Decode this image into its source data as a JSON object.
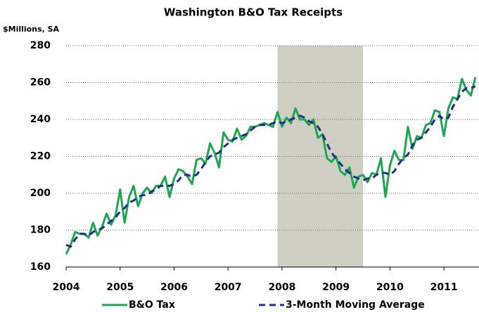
{
  "chart_data": {
    "type": "line",
    "title": "Washington B&O Tax Receipts",
    "y_label": "$Millions, SA",
    "x": [
      2004,
      2004.083,
      2004.167,
      2004.25,
      2004.333,
      2004.417,
      2004.5,
      2004.583,
      2004.667,
      2004.75,
      2004.833,
      2004.917,
      2005,
      2005.083,
      2005.167,
      2005.25,
      2005.333,
      2005.417,
      2005.5,
      2005.583,
      2005.667,
      2005.75,
      2005.833,
      2005.917,
      2006,
      2006.083,
      2006.167,
      2006.25,
      2006.333,
      2006.417,
      2006.5,
      2006.583,
      2006.667,
      2006.75,
      2006.833,
      2006.917,
      2007,
      2007.083,
      2007.167,
      2007.25,
      2007.333,
      2007.417,
      2007.5,
      2007.583,
      2007.667,
      2007.75,
      2007.833,
      2007.917,
      2008,
      2008.083,
      2008.167,
      2008.25,
      2008.333,
      2008.417,
      2008.5,
      2008.583,
      2008.667,
      2008.75,
      2008.833,
      2008.917,
      2009,
      2009.083,
      2009.167,
      2009.25,
      2009.333,
      2009.417,
      2009.5,
      2009.583,
      2009.667,
      2009.75,
      2009.833,
      2009.917,
      2010,
      2010.083,
      2010.167,
      2010.25,
      2010.333,
      2010.417,
      2010.5,
      2010.583,
      2010.667,
      2010.75,
      2010.833,
      2010.917,
      2011,
      2011.083,
      2011.167,
      2011.25,
      2011.333,
      2011.417,
      2011.5,
      2011.583
    ],
    "series": [
      {
        "name": "B&O Tax",
        "color": "#1aa84f",
        "dash": false,
        "values": [
          167,
          172,
          179,
          178,
          178,
          176,
          184,
          177,
          182,
          189,
          183,
          188,
          202,
          184,
          198,
          204,
          193,
          200,
          203,
          200,
          204,
          204,
          209,
          198,
          208,
          213,
          212,
          209,
          205,
          218,
          219,
          216,
          227,
          222,
          214,
          233,
          229,
          228,
          235,
          229,
          231,
          236,
          236,
          237,
          238,
          237,
          236,
          244,
          236,
          241,
          238,
          246,
          240,
          240,
          237,
          240,
          230,
          232,
          219,
          217,
          220,
          212,
          210,
          214,
          203,
          209,
          210,
          206,
          211,
          210,
          219,
          198,
          215,
          223,
          218,
          218,
          236,
          224,
          231,
          230,
          237,
          238,
          245,
          244,
          231,
          246,
          252,
          251,
          262,
          256,
          253,
          263
        ]
      },
      {
        "name": "3-Month Moving Average",
        "color": "#1f2d8c",
        "dash": true,
        "values": [
          172,
          171,
          175,
          178,
          178,
          177,
          179,
          180,
          181,
          183,
          185,
          187,
          190,
          192,
          195,
          196,
          198,
          199,
          199,
          201,
          202,
          204,
          204,
          204,
          205,
          207,
          210,
          210,
          209,
          210,
          213,
          217,
          220,
          221,
          222,
          225,
          227,
          229,
          230,
          231,
          232,
          234,
          236,
          237,
          237,
          237,
          238,
          239,
          238,
          239,
          240,
          241,
          242,
          241,
          239,
          238,
          236,
          232,
          227,
          222,
          219,
          216,
          213,
          211,
          209,
          208,
          207,
          208,
          208,
          210,
          211,
          211,
          210,
          212,
          216,
          219,
          221,
          226,
          229,
          230,
          233,
          236,
          240,
          242,
          240,
          241,
          247,
          251,
          255,
          257,
          257,
          258
        ]
      }
    ],
    "recession": [
      2007.917,
      2009.5
    ],
    "recession_color": "#cfcfc4",
    "xlim": [
      2004,
      2011.65
    ],
    "xticks": [
      2004,
      2005,
      2006,
      2007,
      2008,
      2009,
      2010,
      2011
    ],
    "ylim": [
      160,
      280
    ],
    "yticks": [
      160,
      180,
      200,
      220,
      240,
      260,
      280
    ],
    "grid": true,
    "legend": "bottom"
  }
}
